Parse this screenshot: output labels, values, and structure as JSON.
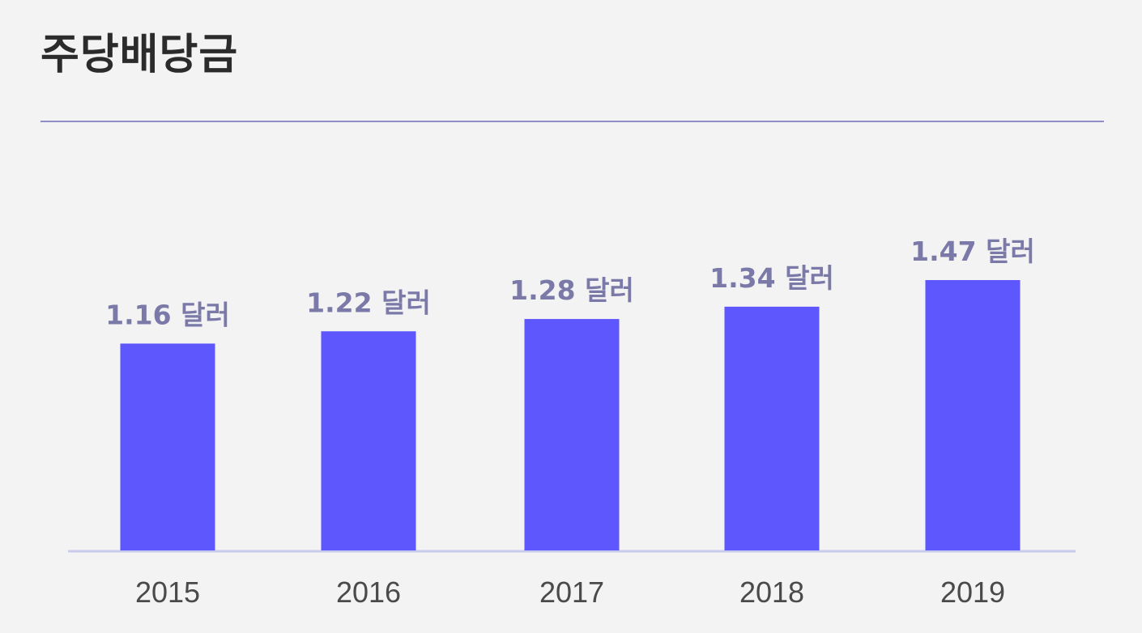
{
  "header": {
    "title": "주당배당금"
  },
  "colors": {
    "background": "#f3f3f4",
    "bar": "#5e57fe",
    "divider": "#8e8fc8",
    "value_label": "#7a79a8",
    "baseline": "#c9cbec"
  },
  "chart_data": {
    "type": "bar",
    "title": "",
    "xlabel": "",
    "ylabel": "",
    "categories": [
      "2015",
      "2016",
      "2017",
      "2018",
      "2019"
    ],
    "values": [
      1.16,
      1.22,
      1.28,
      1.34,
      1.47
    ],
    "data_labels": [
      "1.16 달러",
      "1.22 달러",
      "1.28 달러",
      "1.34 달러",
      "1.47 달러"
    ],
    "ylim": [
      0,
      1.47
    ],
    "grid": false,
    "legend": "none"
  }
}
